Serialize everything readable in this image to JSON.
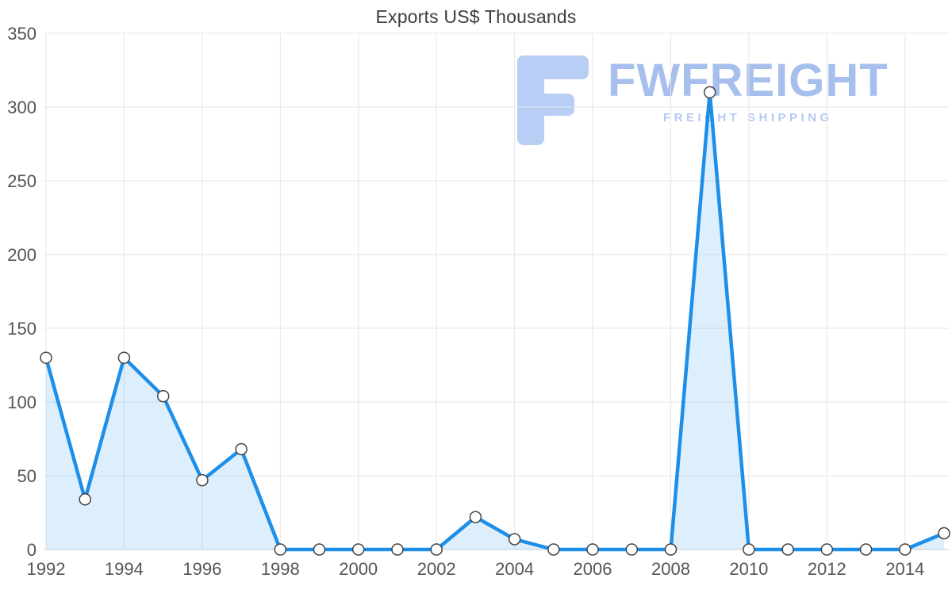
{
  "chart_data": {
    "type": "area",
    "title": "Exports US$ Thousands",
    "x": [
      1992,
      1993,
      1994,
      1995,
      1996,
      1997,
      1998,
      1999,
      2000,
      2001,
      2002,
      2003,
      2004,
      2005,
      2006,
      2007,
      2008,
      2009,
      2010,
      2011,
      2012,
      2013,
      2014,
      2015
    ],
    "values": [
      130,
      34,
      130,
      104,
      47,
      68,
      0,
      0,
      0,
      0,
      0,
      22,
      7,
      0,
      0,
      0,
      0,
      310,
      0,
      0,
      0,
      0,
      0,
      11
    ],
    "xlabel": "",
    "ylabel": "",
    "ylim": [
      0,
      350
    ],
    "yticks": [
      0,
      50,
      100,
      150,
      200,
      250,
      300,
      350
    ],
    "xticks": [
      1992,
      1994,
      1996,
      1998,
      2000,
      2002,
      2004,
      2006,
      2008,
      2010,
      2012,
      2014
    ],
    "grid": true,
    "legend": false,
    "line_color": "#1e8fe9",
    "fill_color": "rgba(30,143,233,0.15)",
    "grid_color": "#e6e6e6",
    "baseline_color": "#cfcfcf",
    "tick_label_color": "#555555",
    "marker_fill": "#ffffff",
    "marker_stroke": "#444444"
  },
  "watermark": {
    "title": "FWFREIGHT",
    "subtitle": "FREIGHT SHIPPING",
    "color": "#a6bfed",
    "icon_color": "#b9cef5",
    "icon": "freight-logo-icon"
  }
}
